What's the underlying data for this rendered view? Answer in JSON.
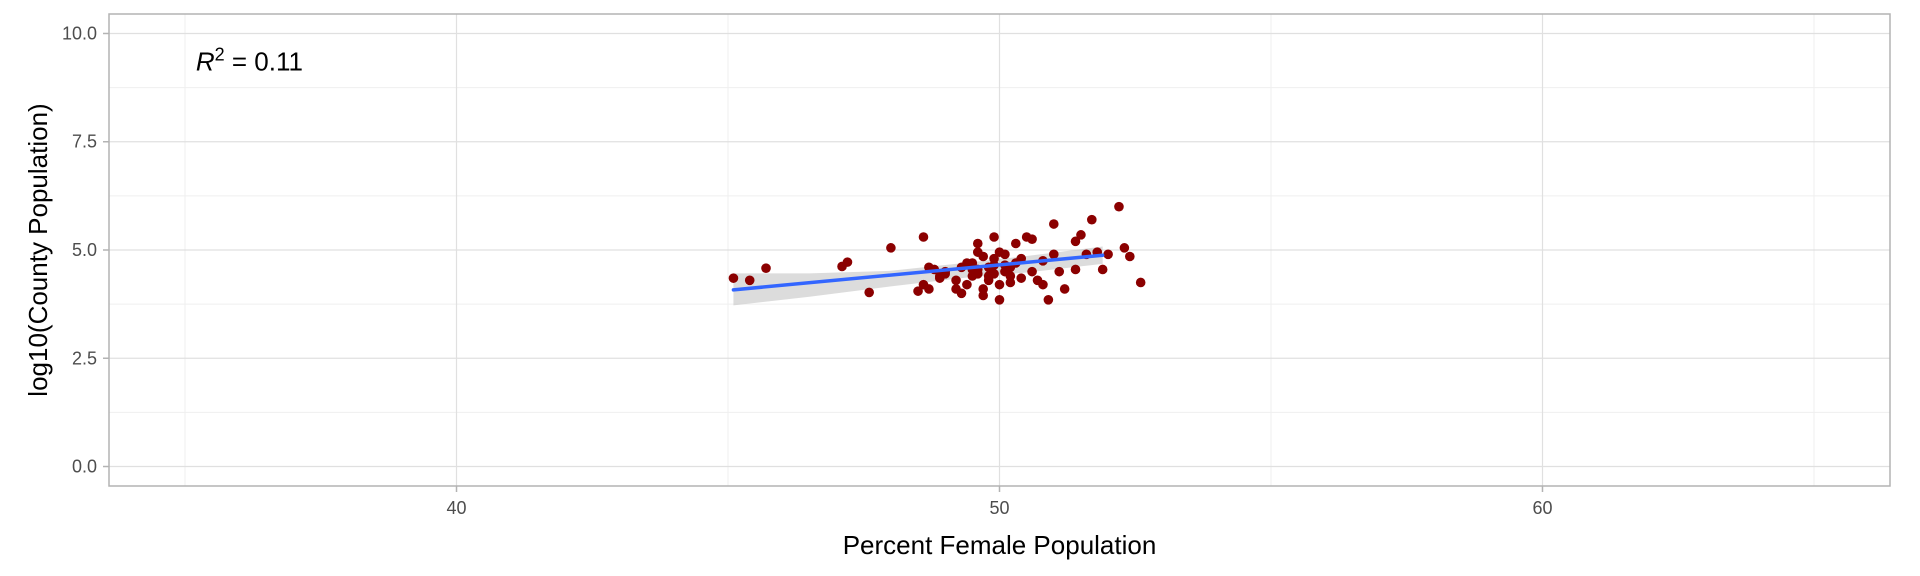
{
  "chart_data": {
    "type": "scatter",
    "xlabel": "Percent Female Population",
    "ylabel": "log10(County Population)",
    "xlim": [
      33.6,
      66.4
    ],
    "ylim": [
      -0.45,
      10.45
    ],
    "x_ticks": [
      40,
      50,
      60
    ],
    "x_tick_labels": [
      "40",
      "50",
      "60"
    ],
    "y_ticks": [
      0,
      2.5,
      5,
      7.5,
      10
    ],
    "y_tick_labels": [
      "0.0",
      "2.5",
      "5.0",
      "7.5",
      "10.0"
    ],
    "grid": true,
    "annotation": {
      "label": "R",
      "sup": "2",
      "text": " = 0.11",
      "x": 35.2,
      "y": 9.35
    },
    "colors": {
      "points": "#8b0000",
      "fit_line": "#3366ff",
      "ribbon": "#bfbfbf",
      "grid_major": "#e0e0e0",
      "grid_minor": "#efefef",
      "panel_border": "#b3b3b3"
    },
    "fit": {
      "x": [
        45.1,
        51.9
      ],
      "y": [
        4.08,
        4.88
      ]
    },
    "ribbon": {
      "x": [
        45.1,
        46.5,
        48.0,
        49.5,
        50.5,
        51.9
      ],
      "upper": [
        4.46,
        4.46,
        4.52,
        4.72,
        4.86,
        5.08
      ],
      "lower": [
        3.72,
        3.92,
        4.16,
        4.38,
        4.48,
        4.68
      ]
    },
    "points": [
      [
        45.1,
        4.35
      ],
      [
        45.4,
        4.3
      ],
      [
        45.7,
        4.58
      ],
      [
        47.1,
        4.62
      ],
      [
        47.2,
        4.72
      ],
      [
        47.6,
        4.02
      ],
      [
        48.0,
        5.05
      ],
      [
        48.5,
        4.05
      ],
      [
        48.6,
        5.3
      ],
      [
        48.7,
        4.6
      ],
      [
        48.8,
        4.55
      ],
      [
        48.9,
        4.35
      ],
      [
        48.7,
        4.1
      ],
      [
        48.6,
        4.2
      ],
      [
        49.0,
        4.5
      ],
      [
        49.2,
        4.3
      ],
      [
        49.3,
        4.6
      ],
      [
        49.3,
        4.0
      ],
      [
        49.4,
        4.2
      ],
      [
        49.5,
        4.4
      ],
      [
        49.5,
        4.7
      ],
      [
        49.6,
        5.15
      ],
      [
        49.6,
        4.95
      ],
      [
        49.6,
        4.55
      ],
      [
        49.7,
        4.1
      ],
      [
        49.7,
        3.95
      ],
      [
        49.8,
        4.6
      ],
      [
        49.8,
        4.3
      ],
      [
        49.9,
        5.3
      ],
      [
        49.9,
        4.8
      ],
      [
        49.9,
        4.45
      ],
      [
        50.0,
        3.85
      ],
      [
        50.0,
        4.95
      ],
      [
        50.0,
        4.2
      ],
      [
        50.1,
        4.5
      ],
      [
        50.1,
        4.65
      ],
      [
        50.2,
        4.6
      ],
      [
        50.2,
        4.4
      ],
      [
        50.3,
        5.15
      ],
      [
        50.4,
        4.8
      ],
      [
        50.5,
        5.3
      ],
      [
        50.6,
        5.25
      ],
      [
        50.6,
        4.5
      ],
      [
        50.7,
        4.3
      ],
      [
        50.8,
        4.75
      ],
      [
        50.8,
        4.2
      ],
      [
        50.9,
        3.85
      ],
      [
        51.0,
        4.9
      ],
      [
        51.0,
        5.6
      ],
      [
        51.1,
        4.5
      ],
      [
        51.2,
        4.1
      ],
      [
        51.4,
        5.2
      ],
      [
        51.5,
        5.35
      ],
      [
        51.4,
        4.55
      ],
      [
        51.6,
        4.9
      ],
      [
        51.7,
        5.7
      ],
      [
        51.8,
        4.95
      ],
      [
        51.9,
        4.55
      ],
      [
        52.0,
        4.9
      ],
      [
        52.2,
        6.0
      ],
      [
        52.3,
        5.05
      ],
      [
        52.4,
        4.85
      ],
      [
        52.6,
        4.25
      ],
      [
        49.4,
        4.7
      ],
      [
        49.5,
        4.55
      ],
      [
        49.2,
        4.1
      ],
      [
        49.0,
        4.45
      ],
      [
        50.3,
        4.7
      ],
      [
        50.4,
        4.35
      ],
      [
        49.7,
        4.85
      ],
      [
        49.9,
        4.65
      ],
      [
        50.1,
        4.9
      ],
      [
        49.6,
        4.45
      ],
      [
        50.2,
        4.25
      ],
      [
        48.9,
        4.4
      ],
      [
        49.8,
        4.4
      ]
    ]
  }
}
